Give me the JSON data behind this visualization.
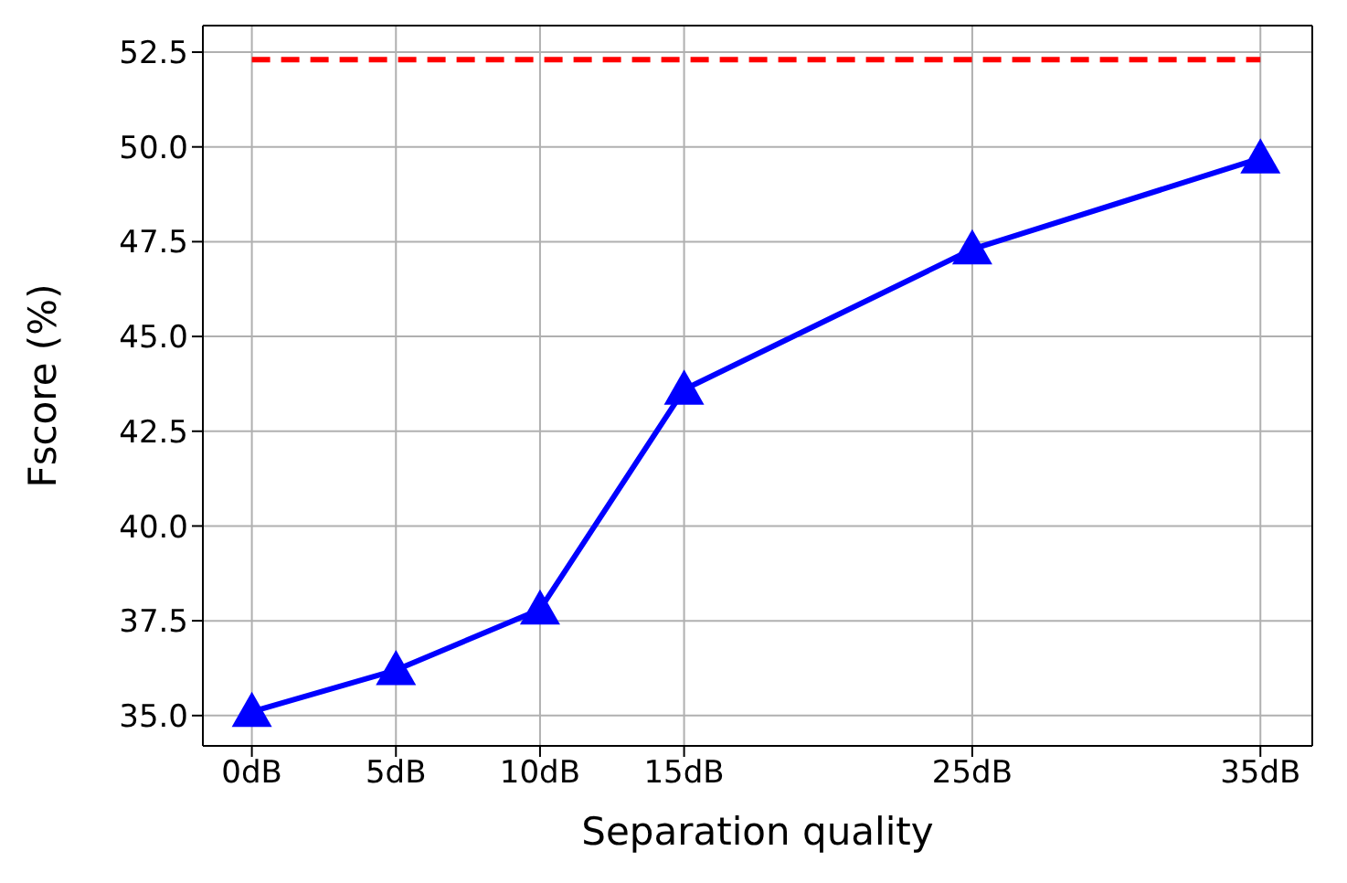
{
  "chart_data": {
    "type": "line",
    "xlabel": "Separation quality",
    "ylabel": "Fscore (%)",
    "x": [
      0,
      5,
      10,
      15,
      25,
      35
    ],
    "series": [
      {
        "color": "#0000ff",
        "values": [
          35.1,
          36.2,
          37.8,
          43.6,
          47.3,
          49.7
        ],
        "marker": "triangle",
        "line_style": "solid"
      },
      {
        "color": "#ff0000",
        "x": [
          0,
          35
        ],
        "values": [
          52.3,
          52.3
        ],
        "marker": "none",
        "line_style": "dashed"
      }
    ],
    "xlim": [
      -1.7,
      36.8
    ],
    "xticks": [
      {
        "value": 0,
        "label": "0dB"
      },
      {
        "value": 5,
        "label": "5dB"
      },
      {
        "value": 10,
        "label": "10dB"
      },
      {
        "value": 15,
        "label": "15dB"
      },
      {
        "value": 25,
        "label": "25dB"
      },
      {
        "value": 35,
        "label": "35dB"
      }
    ],
    "ylim": [
      34.2,
      53.2
    ],
    "yticks": [
      {
        "value": 35,
        "label": "35.0"
      },
      {
        "value": 37.5,
        "label": "37.5"
      },
      {
        "value": 40,
        "label": "40.0"
      },
      {
        "value": 42.5,
        "label": "42.5"
      },
      {
        "value": 45,
        "label": "45.0"
      },
      {
        "value": 47.5,
        "label": "47.5"
      },
      {
        "value": 50,
        "label": "50.0"
      },
      {
        "value": 52.5,
        "label": "52.5"
      }
    ],
    "grid": true
  }
}
